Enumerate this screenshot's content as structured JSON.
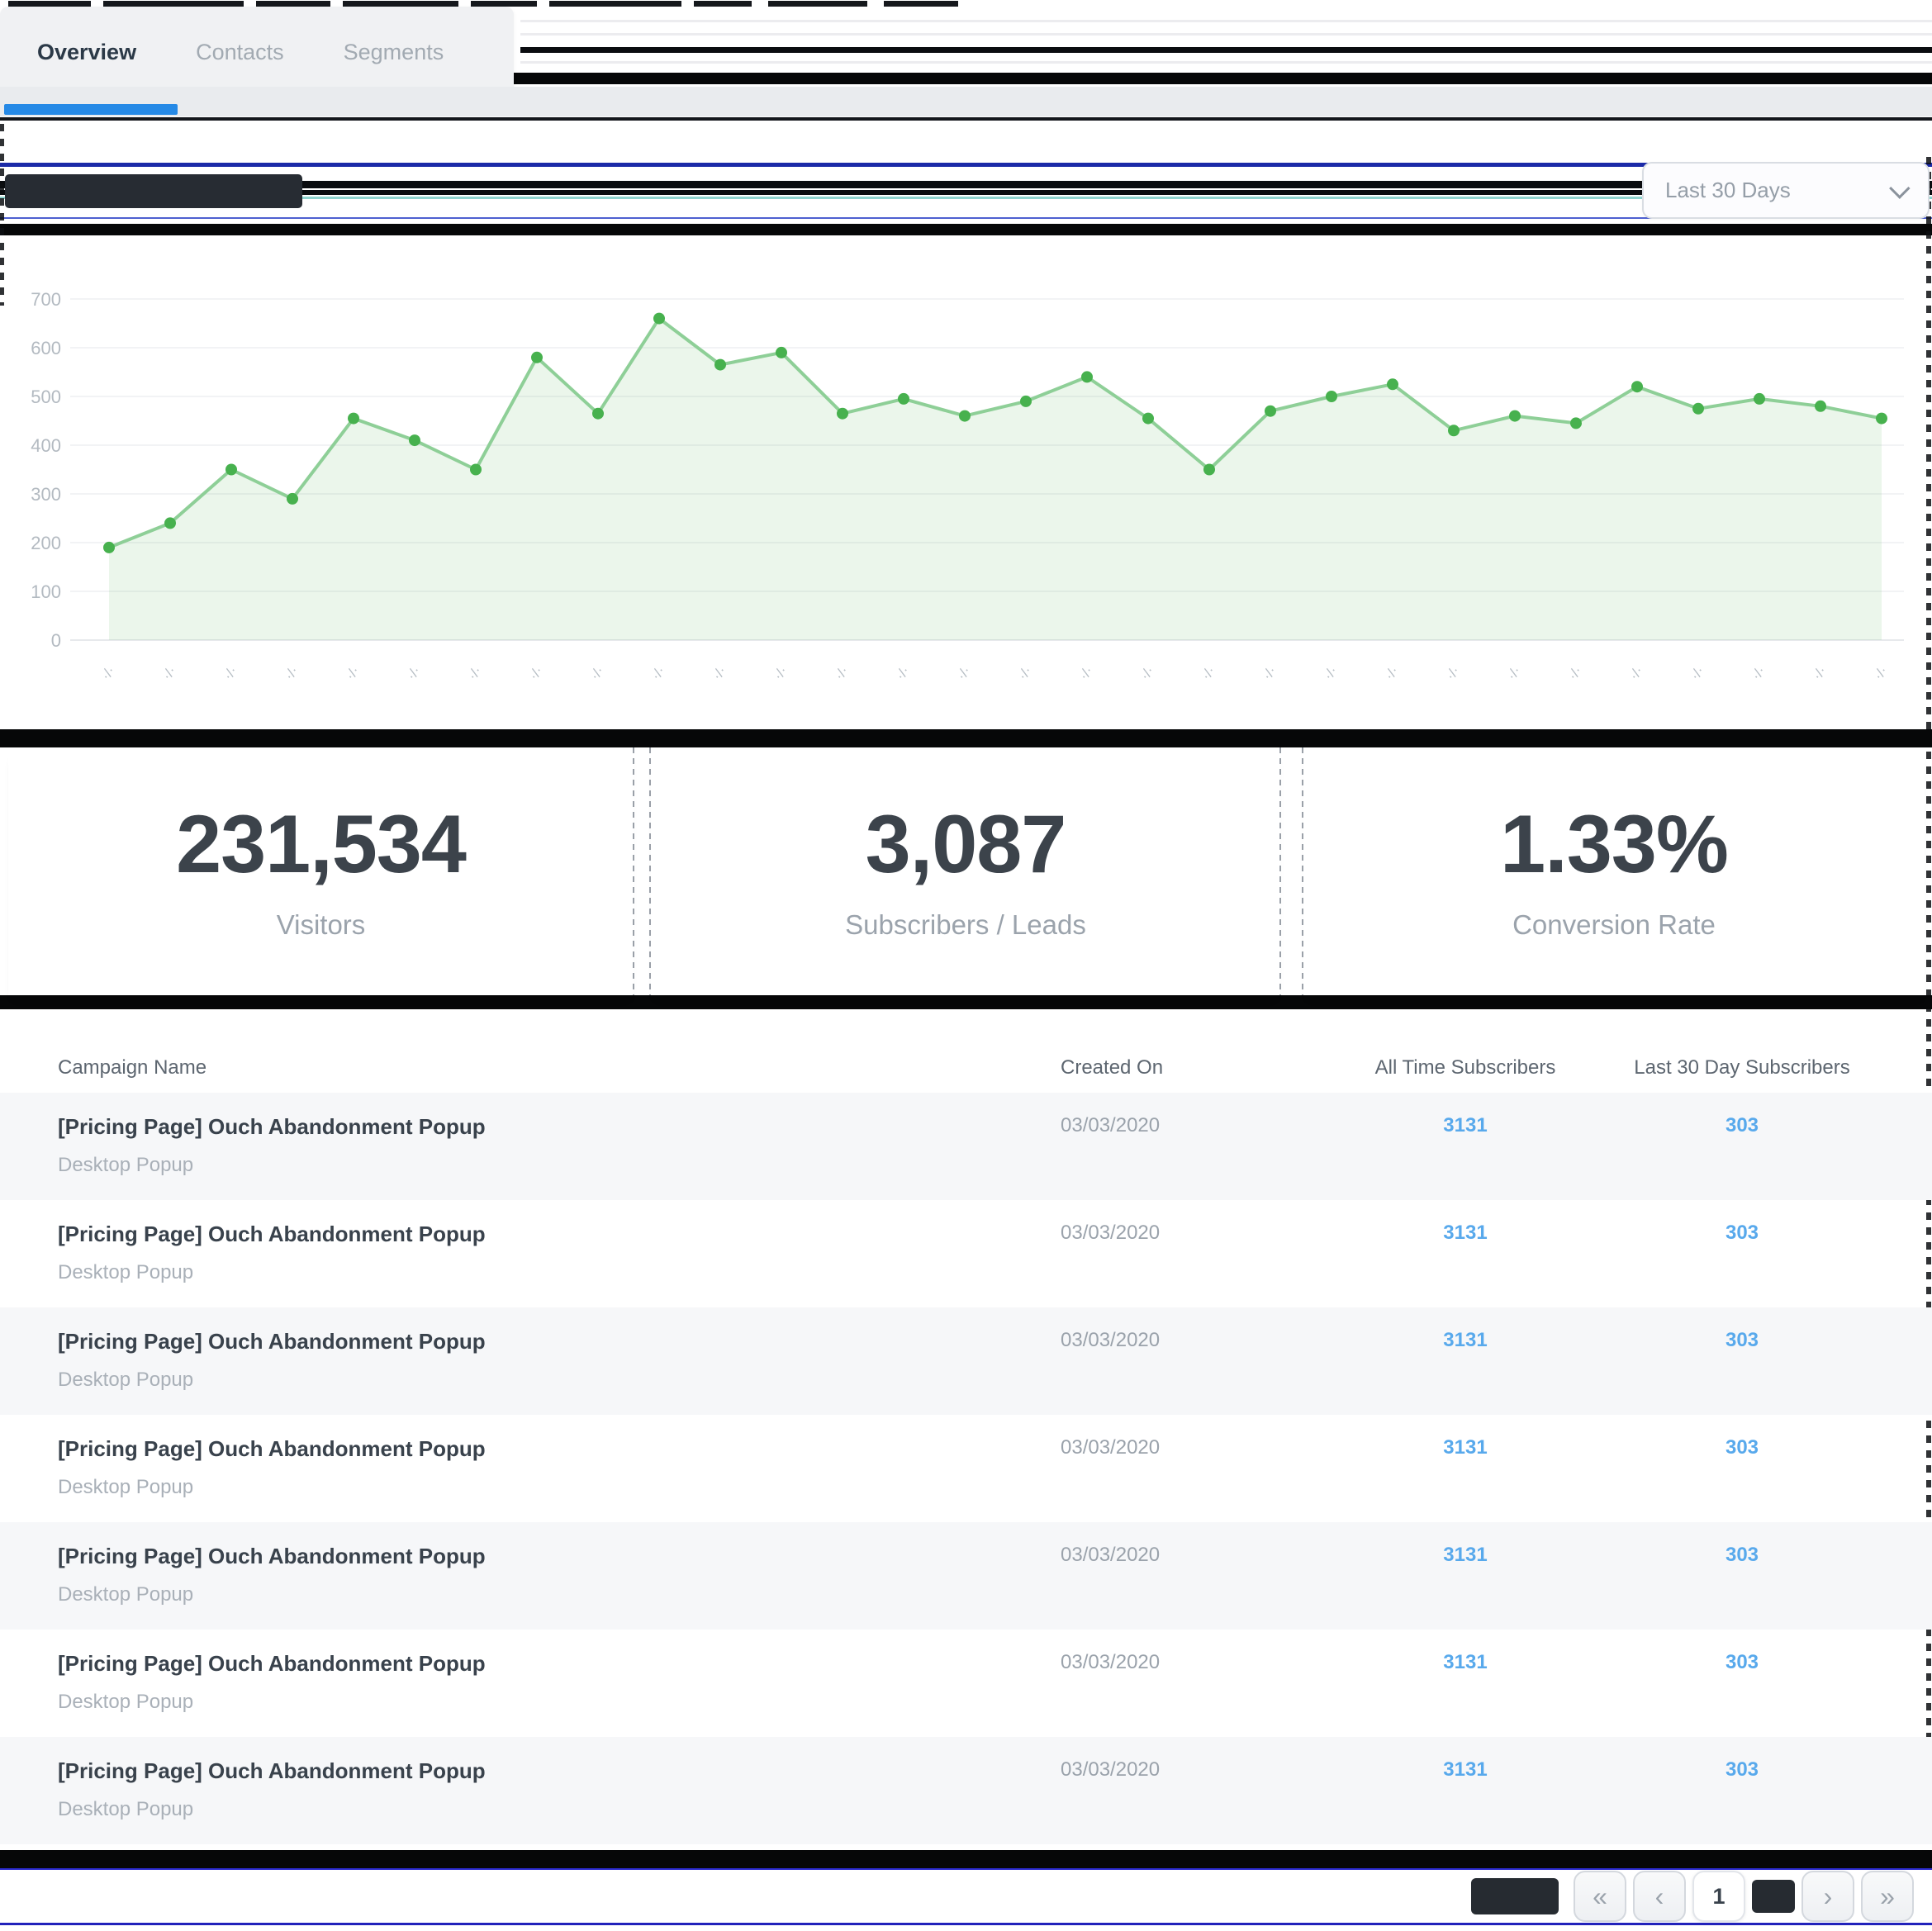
{
  "tabs": {
    "items": [
      {
        "label": "Overview",
        "active": true
      },
      {
        "label": "Contacts",
        "active": false
      },
      {
        "label": "Segments",
        "active": false
      }
    ]
  },
  "chart_header": {
    "title_redacted": true,
    "range_select": {
      "value": "Last 30 Days"
    }
  },
  "chart_data": {
    "type": "area",
    "title": "",
    "title_redacted": true,
    "x": [
      1,
      2,
      3,
      4,
      5,
      6,
      7,
      8,
      9,
      10,
      11,
      12,
      13,
      14,
      15,
      16,
      17,
      18,
      19,
      20,
      21,
      22,
      23,
      24,
      25,
      26,
      27,
      28,
      29,
      30
    ],
    "values": [
      190,
      240,
      350,
      290,
      455,
      410,
      350,
      580,
      465,
      660,
      565,
      590,
      465,
      495,
      460,
      490,
      540,
      455,
      350,
      470,
      500,
      525,
      430,
      460,
      445,
      520,
      475,
      495,
      480,
      455
    ],
    "ylim": [
      0,
      700
    ],
    "y_ticks": [
      0,
      100,
      200,
      300,
      400,
      500,
      600,
      700
    ],
    "grid": true,
    "legend": "none",
    "x_tick_labels_illegible": true,
    "x_tick_label_placeholder": "·/·",
    "line_color": "#8ecf97",
    "dot_color": "#47b14e",
    "fill_color": "#5cb85c"
  },
  "stats": {
    "cards": [
      {
        "value": "231,534",
        "label": "Visitors"
      },
      {
        "value": "3,087",
        "label": "Subscribers / Leads"
      },
      {
        "value": "1.33%",
        "label": "Conversion Rate"
      }
    ]
  },
  "table": {
    "columns": [
      "Campaign Name",
      "Created On",
      "All Time Subscribers",
      "Last 30 Day Subscribers"
    ],
    "rows": [
      {
        "name": "[Pricing Page] Ouch Abandonment Popup",
        "type": "Desktop Popup",
        "created_on": "03/03/2020",
        "all_time_subscribers": "3131",
        "last_30_day_subscribers": "303"
      },
      {
        "name": "[Pricing Page] Ouch Abandonment Popup",
        "type": "Desktop Popup",
        "created_on": "03/03/2020",
        "all_time_subscribers": "3131",
        "last_30_day_subscribers": "303"
      },
      {
        "name": "[Pricing Page] Ouch Abandonment Popup",
        "type": "Desktop Popup",
        "created_on": "03/03/2020",
        "all_time_subscribers": "3131",
        "last_30_day_subscribers": "303"
      },
      {
        "name": "[Pricing Page] Ouch Abandonment Popup",
        "type": "Desktop Popup",
        "created_on": "03/03/2020",
        "all_time_subscribers": "3131",
        "last_30_day_subscribers": "303"
      },
      {
        "name": "[Pricing Page] Ouch Abandonment Popup",
        "type": "Desktop Popup",
        "created_on": "03/03/2020",
        "all_time_subscribers": "3131",
        "last_30_day_subscribers": "303"
      },
      {
        "name": "[Pricing Page] Ouch Abandonment Popup",
        "type": "Desktop Popup",
        "created_on": "03/03/2020",
        "all_time_subscribers": "3131",
        "last_30_day_subscribers": "303"
      },
      {
        "name": "[Pricing Page] Ouch Abandonment Popup",
        "type": "Desktop Popup",
        "created_on": "03/03/2020",
        "all_time_subscribers": "3131",
        "last_30_day_subscribers": "303"
      }
    ]
  },
  "pagination": {
    "current_page": "1",
    "first_icon": "«",
    "prev_icon": "‹",
    "next_icon": "›",
    "last_icon": "»",
    "left_label_redacted": true,
    "mid_label_redacted": true
  },
  "colors": {
    "accent_blue": "#2589e6",
    "navy_line": "#1b2aa8",
    "teal_line": "#8fd4cf",
    "link_blue": "#58a9ec",
    "chart_line": "#8ecf97",
    "chart_dot": "#47b14e",
    "chart_fill": "#5cb85c",
    "row_alt_bg": "#f6f7f9",
    "redaction": "#262b31"
  }
}
